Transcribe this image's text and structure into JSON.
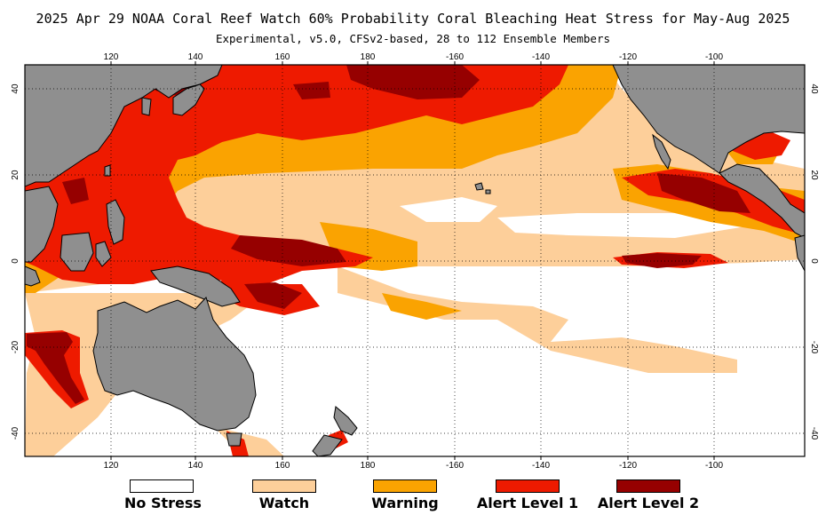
{
  "header": {
    "title": "2025 Apr 29 NOAA Coral Reef Watch 60% Probability Coral Bleaching Heat Stress for May-Aug 2025",
    "subtitle": "Experimental, v5.0, CFSv2-based, 28 to 112 Ensemble Members"
  },
  "axes": {
    "lon_ticks_top": [
      "120",
      "140",
      "160",
      "180",
      "-160",
      "-140",
      "-120",
      "-100"
    ],
    "lon_ticks_bottom": [
      "120",
      "140",
      "160",
      "180",
      "-160",
      "-140",
      "-120",
      "-100"
    ],
    "lat_ticks_left": [
      "40",
      "20",
      "0",
      "-20",
      "-40"
    ],
    "lat_ticks_right": [
      "40",
      "20",
      "0",
      "-20",
      "-40"
    ]
  },
  "colors": {
    "no_stress": "#ffffff",
    "watch": "#fdcf9a",
    "warning": "#faa301",
    "alert_1": "#ee1a00",
    "alert_2": "#960000",
    "land": "#8f8f8f",
    "coast": "#000000"
  },
  "legend": [
    {
      "label": "No Stress",
      "color": "#ffffff"
    },
    {
      "label": "Watch",
      "color": "#fdcf9a"
    },
    {
      "label": "Warning",
      "color": "#faa301"
    },
    {
      "label": "Alert Level 1",
      "color": "#ee1a00"
    },
    {
      "label": "Alert Level 2",
      "color": "#960000"
    }
  ]
}
